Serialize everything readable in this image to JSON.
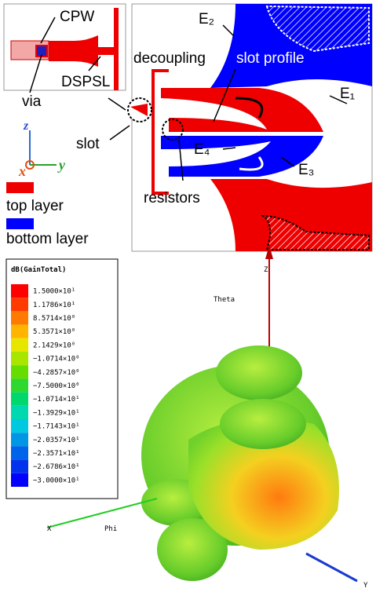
{
  "inset": {
    "cpw": "CPW",
    "dspsl": "DSPSL"
  },
  "labels": {
    "via": "via",
    "slot": "slot",
    "decoupling": "decoupling",
    "slot_profile": "slot profile",
    "e1": "E₁",
    "e2": "E₂",
    "e3": "E₃",
    "e4": "E₄",
    "resistors": "resistors"
  },
  "axes": {
    "z": "z",
    "x": "x",
    "y": "y"
  },
  "layers": {
    "top": "top layer",
    "bottom": "bottom layer"
  },
  "legend": {
    "title": "dB(GainTotal)",
    "entries": [
      "1.5000×10¹",
      "1.1786×10¹",
      "8.5714×10⁰",
      "5.3571×10⁰",
      "2.1429×10⁰",
      "−1.0714×10⁰",
      "−4.2857×10⁰",
      "−7.5000×10⁰",
      "−1.0714×10¹",
      "−1.3929×10¹",
      "−1.7143×10¹",
      "−2.0357×10¹",
      "−2.3571×10¹",
      "−2.6786×10¹",
      "−3.0000×10¹"
    ]
  },
  "pattern_axes": {
    "z": "Z",
    "theta": "Theta",
    "phi": "Phi",
    "x": "X",
    "y": "Y"
  }
}
